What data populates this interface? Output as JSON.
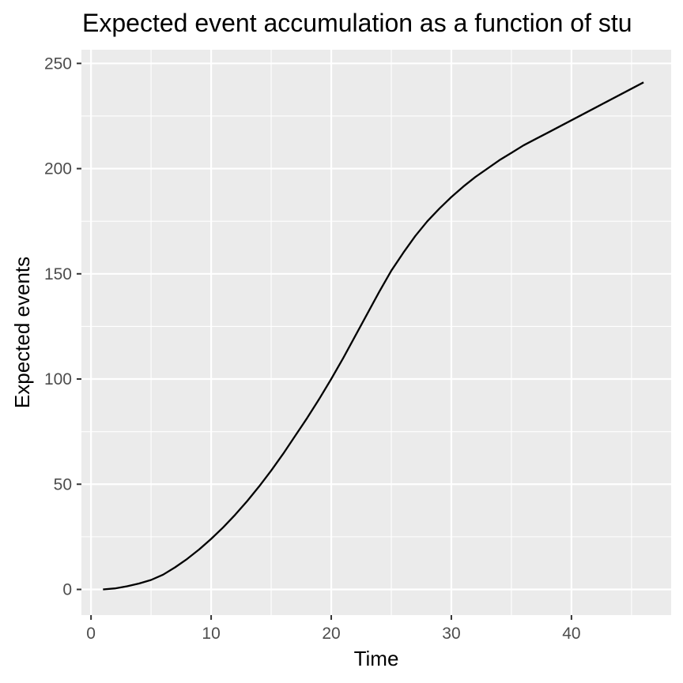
{
  "chart_data": {
    "type": "line",
    "title": "Expected event accumulation as a function of stu",
    "xlabel": "Time",
    "ylabel": "Expected events",
    "xlim": [
      -0.8,
      48.3
    ],
    "ylim": [
      -12.2,
      256.5
    ],
    "x_ticks": [
      0,
      10,
      20,
      30,
      40
    ],
    "y_ticks": [
      0,
      50,
      100,
      150,
      200,
      250
    ],
    "x_minor": [
      5,
      15,
      25,
      35,
      45
    ],
    "y_minor": [
      25,
      75,
      125,
      175,
      225
    ],
    "grid": true,
    "panel_background": "#ebebeb",
    "grid_color": "#ffffff",
    "line_color": "#000000",
    "series": [
      {
        "x": [
          1,
          2,
          3,
          4,
          5,
          6,
          7,
          8,
          9,
          10,
          11,
          12,
          13,
          14,
          15,
          16,
          17,
          18,
          19,
          20,
          21,
          22,
          23,
          24,
          25,
          26,
          27,
          28,
          29,
          30,
          31,
          32,
          33,
          34,
          35,
          36,
          37,
          38,
          39,
          40,
          41,
          42,
          43,
          44,
          45,
          46
        ],
        "y": [
          0,
          0.5,
          1.5,
          2.8,
          4.5,
          7,
          10.5,
          14.5,
          19,
          24,
          29.5,
          35.5,
          42,
          49,
          56.5,
          64.5,
          73,
          81.5,
          90.5,
          100,
          110,
          120.5,
          131,
          141.5,
          151.5,
          160,
          168,
          175,
          181,
          186.5,
          191.5,
          196,
          200,
          204,
          207.5,
          211,
          214,
          217,
          220,
          223,
          226,
          229,
          232,
          235,
          238,
          241
        ]
      }
    ]
  }
}
